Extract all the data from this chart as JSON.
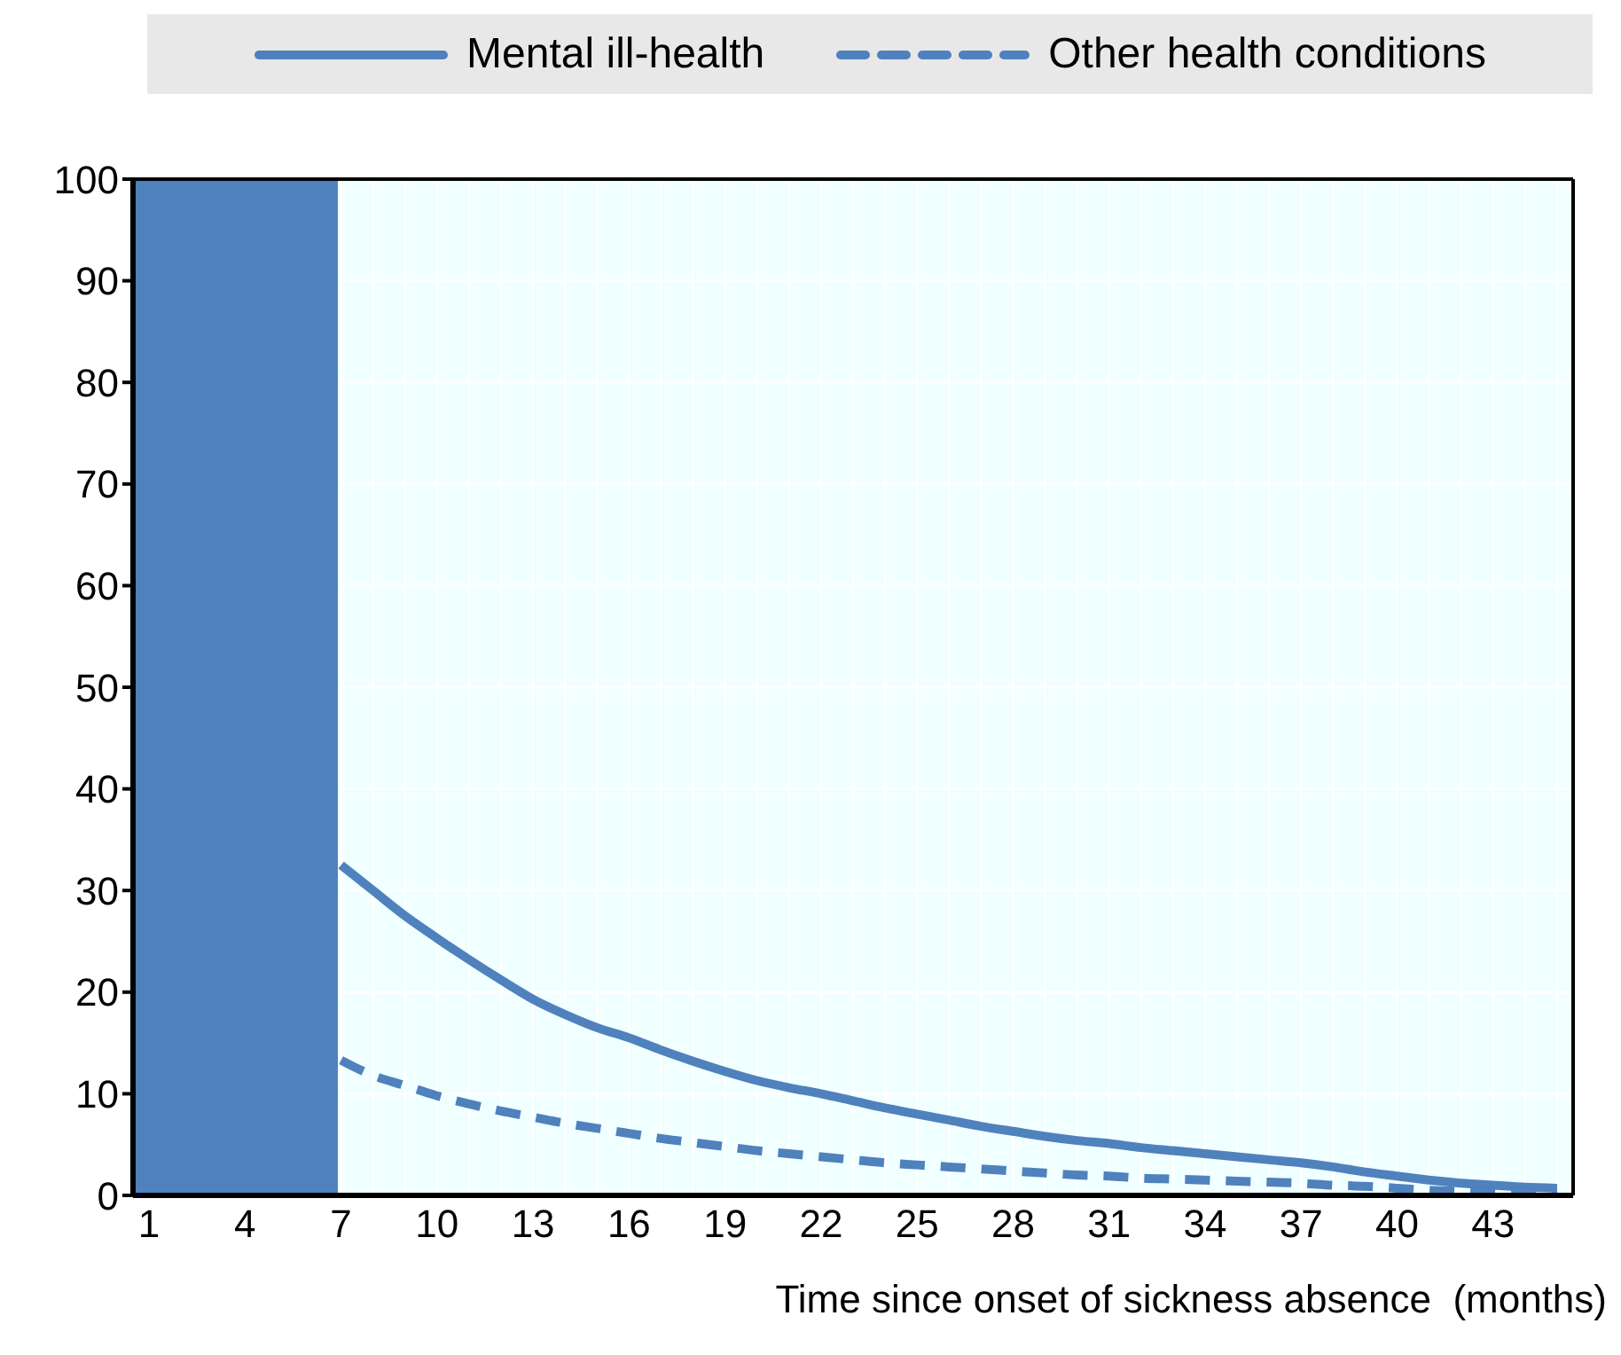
{
  "chart_data": {
    "type": "line",
    "xlabel": "Time since onset of sickness absence  (months)",
    "x": [
      7,
      8,
      9,
      10,
      11,
      12,
      13,
      14,
      15,
      16,
      17,
      18,
      19,
      20,
      21,
      22,
      23,
      24,
      25,
      26,
      27,
      28,
      29,
      30,
      31,
      32,
      33,
      34,
      35,
      36,
      37,
      38,
      39,
      40,
      41,
      42,
      43,
      44,
      45
    ],
    "series": [
      {
        "name": "Mental ill-health",
        "color": "#4f81bd",
        "line_style": "solid",
        "values": [
          32.5,
          30,
          27.5,
          25.3,
          23.2,
          21.2,
          19.3,
          17.8,
          16.5,
          15.5,
          14.3,
          13.2,
          12.2,
          11.3,
          10.6,
          10,
          9.3,
          8.6,
          8,
          7.4,
          6.8,
          6.3,
          5.8,
          5.4,
          5.1,
          4.7,
          4.4,
          4.1,
          3.8,
          3.5,
          3.2,
          2.8,
          2.3,
          1.9,
          1.5,
          1.2,
          1,
          0.8,
          0.7
        ]
      },
      {
        "name": "Other health conditions",
        "color": "#4f81bd",
        "line_style": "dashed",
        "values": [
          13.3,
          11.8,
          10.8,
          9.8,
          9,
          8.3,
          7.7,
          7.1,
          6.6,
          6.1,
          5.6,
          5.2,
          4.8,
          4.4,
          4.1,
          3.8,
          3.5,
          3.2,
          3,
          2.8,
          2.6,
          2.4,
          2.2,
          2,
          1.9,
          1.7,
          1.6,
          1.5,
          1.4,
          1.3,
          1.2,
          1,
          0.9,
          0.7,
          0.5,
          0.4,
          0.3,
          0.2,
          0.2
        ]
      }
    ],
    "xlim": [
      0.5,
      45.5
    ],
    "xticks": [
      1,
      4,
      7,
      {
        "value": 8,
        "label": null
      },
      {
        "value": 9,
        "label": null
      },
      10,
      {
        "value": 11,
        "label": null
      },
      {
        "value": 12,
        "label": null
      },
      13,
      {
        "value": 14,
        "label": null
      },
      {
        "value": 15,
        "label": null
      },
      16,
      {
        "value": 17,
        "label": null
      },
      {
        "value": 18,
        "label": null
      },
      19,
      {
        "value": 20,
        "label": null
      },
      {
        "value": 21,
        "label": null
      },
      22,
      {
        "value": 23,
        "label": null
      },
      {
        "value": 24,
        "label": null
      },
      25,
      {
        "value": 26,
        "label": null
      },
      {
        "value": 27,
        "label": null
      },
      28,
      {
        "value": 29,
        "label": null
      },
      {
        "value": 30,
        "label": null
      },
      31,
      {
        "value": 32,
        "label": null
      },
      {
        "value": 33,
        "label": null
      },
      34,
      {
        "value": 35,
        "label": null
      },
      {
        "value": 36,
        "label": null
      },
      37,
      {
        "value": 38,
        "label": null
      },
      {
        "value": 39,
        "label": null
      },
      40,
      {
        "value": 41,
        "label": null
      },
      {
        "value": 42,
        "label": null
      },
      43,
      {
        "value": 44,
        "label": null
      },
      {
        "value": 45,
        "label": null
      }
    ],
    "ylim": [
      0,
      100
    ],
    "yticks": [
      0,
      10,
      20,
      30,
      40,
      50,
      60,
      70,
      80,
      90,
      100
    ],
    "bands": [
      {
        "axis": "x",
        "from": 0.5,
        "to": 6.9,
        "color": "#4f81bd"
      }
    ],
    "grid": true,
    "legend": "top",
    "marker": "none"
  }
}
